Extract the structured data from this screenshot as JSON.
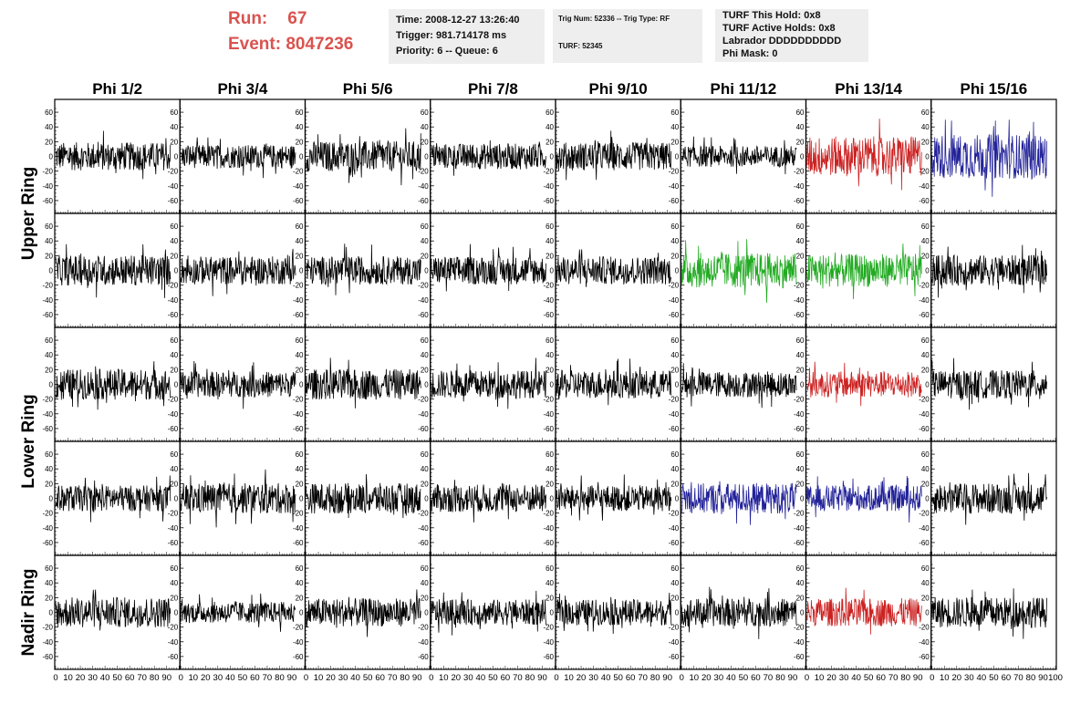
{
  "header": {
    "run_label": "Run:",
    "run_value": "67",
    "event_label": "Event:",
    "event_value": "8047236"
  },
  "info_boxes": [
    {
      "lines": [
        "Time: 2008-12-27 13:26:40",
        "Trigger: 981.714178 ms",
        "Priority: 6 -- Queue: 6"
      ]
    },
    {
      "lines": [
        "Trig Num: 52336 -- Trig Type: RF",
        "",
        "TURF: 52345"
      ]
    },
    {
      "lines": [
        "TURF This Hold: 0x8",
        "TURF Active Holds: 0x8",
        "Labrador DDDDDDDDDD",
        "Phi Mask: 0"
      ]
    }
  ],
  "colors": {
    "header_red": "#d9534f",
    "trace_default": "#000000",
    "trace_red": "#cc2222",
    "trace_green": "#22aa22",
    "trace_blue": "#222299"
  },
  "chart_data": {
    "type": "line",
    "description_grid": "5 rows x 8 columns of waveform panels",
    "column_titles": [
      "Phi 1/2",
      "Phi 3/4",
      "Phi 5/6",
      "Phi 7/8",
      "Phi 9/10",
      "Phi 11/12",
      "Phi 13/14",
      "Phi 15/16"
    ],
    "ring_labels": [
      {
        "text": "Upper Ring",
        "rows": [
          0,
          1
        ]
      },
      {
        "text": "Lower Ring",
        "rows": [
          2,
          3
        ]
      },
      {
        "text": "Nadir Ring",
        "rows": [
          4
        ]
      }
    ],
    "xlim": [
      0,
      100
    ],
    "ylim": [
      -70,
      70
    ],
    "y_ticks": [
      -60,
      -40,
      -20,
      0,
      20,
      40,
      60
    ],
    "x_tick_labels": [
      "0",
      "10",
      "20",
      "30",
      "40",
      "50",
      "60",
      "70",
      "80",
      "90",
      "100"
    ],
    "samples_per_trace": 260,
    "trace_colors": [
      [
        "black",
        "black",
        "black",
        "black",
        "black",
        "black",
        "red",
        "blue"
      ],
      [
        "black",
        "black",
        "black",
        "black",
        "black",
        "green",
        "green",
        "black"
      ],
      [
        "black",
        "black",
        "black",
        "black",
        "black",
        "black",
        "red",
        "black"
      ],
      [
        "black",
        "black",
        "black",
        "black",
        "black",
        "blue",
        "blue",
        "black"
      ],
      [
        "black",
        "black",
        "black",
        "black",
        "black",
        "black",
        "red",
        "black"
      ]
    ],
    "trace_amplitudes": [
      [
        12,
        10,
        13,
        11,
        12,
        9,
        17,
        19
      ],
      [
        13,
        12,
        12,
        12,
        12,
        15,
        14,
        13
      ],
      [
        13,
        11,
        13,
        12,
        12,
        11,
        11,
        12
      ],
      [
        11,
        13,
        13,
        12,
        11,
        13,
        11,
        13
      ],
      [
        13,
        9,
        12,
        11,
        11,
        12,
        12,
        13
      ]
    ]
  }
}
